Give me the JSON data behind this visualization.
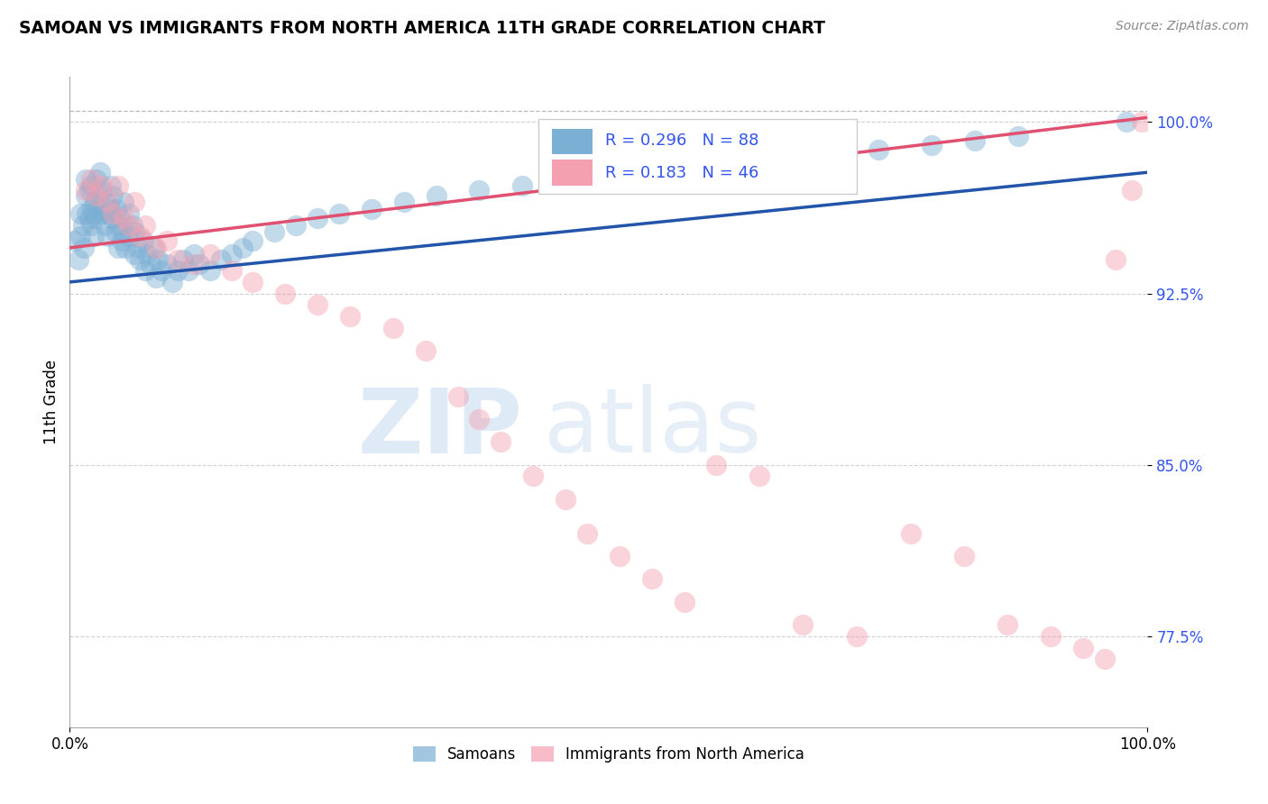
{
  "title": "SAMOAN VS IMMIGRANTS FROM NORTH AMERICA 11TH GRADE CORRELATION CHART",
  "source": "Source: ZipAtlas.com",
  "ylabel": "11th Grade",
  "xlim": [
    0.0,
    1.0
  ],
  "ylim": [
    0.735,
    1.02
  ],
  "yticks": [
    0.775,
    0.85,
    0.925,
    1.0
  ],
  "ytick_labels": [
    "77.5%",
    "85.0%",
    "92.5%",
    "100.0%"
  ],
  "xtick_labels": [
    "0.0%",
    "100.0%"
  ],
  "blue_color": "#7BAFD4",
  "pink_color": "#F4A0B0",
  "blue_line_color": "#2255AA",
  "pink_line_color": "#E05070",
  "r_blue": 0.296,
  "n_blue": 88,
  "r_pink": 0.183,
  "n_pink": 46,
  "legend_r_color": "#3355EE",
  "blue_line_y0": 0.93,
  "blue_line_y1": 0.978,
  "pink_line_y0": 0.945,
  "pink_line_y1": 1.002,
  "blue_scatter_x": [
    0.005,
    0.008,
    0.01,
    0.01,
    0.012,
    0.013,
    0.015,
    0.015,
    0.016,
    0.018,
    0.018,
    0.02,
    0.02,
    0.02,
    0.022,
    0.022,
    0.023,
    0.025,
    0.025,
    0.025,
    0.027,
    0.028,
    0.03,
    0.03,
    0.032,
    0.033,
    0.035,
    0.035,
    0.037,
    0.038,
    0.04,
    0.04,
    0.042,
    0.043,
    0.045,
    0.045,
    0.047,
    0.048,
    0.05,
    0.05,
    0.052,
    0.055,
    0.055,
    0.058,
    0.06,
    0.06,
    0.063,
    0.065,
    0.068,
    0.07,
    0.072,
    0.075,
    0.078,
    0.08,
    0.082,
    0.085,
    0.09,
    0.095,
    0.1,
    0.105,
    0.11,
    0.115,
    0.12,
    0.13,
    0.14,
    0.15,
    0.16,
    0.17,
    0.19,
    0.21,
    0.23,
    0.25,
    0.28,
    0.31,
    0.34,
    0.38,
    0.42,
    0.47,
    0.53,
    0.58,
    0.62,
    0.66,
    0.7,
    0.75,
    0.8,
    0.84,
    0.88,
    0.98
  ],
  "blue_scatter_y": [
    0.948,
    0.94,
    0.95,
    0.96,
    0.955,
    0.945,
    0.968,
    0.975,
    0.96,
    0.97,
    0.958,
    0.962,
    0.955,
    0.972,
    0.96,
    0.95,
    0.965,
    0.958,
    0.968,
    0.975,
    0.962,
    0.978,
    0.96,
    0.97,
    0.955,
    0.965,
    0.96,
    0.95,
    0.962,
    0.972,
    0.958,
    0.968,
    0.952,
    0.962,
    0.955,
    0.945,
    0.958,
    0.948,
    0.952,
    0.965,
    0.945,
    0.96,
    0.95,
    0.955,
    0.942,
    0.952,
    0.945,
    0.94,
    0.948,
    0.935,
    0.942,
    0.938,
    0.945,
    0.932,
    0.94,
    0.935,
    0.938,
    0.93,
    0.935,
    0.94,
    0.935,
    0.942,
    0.938,
    0.935,
    0.94,
    0.942,
    0.945,
    0.948,
    0.952,
    0.955,
    0.958,
    0.96,
    0.962,
    0.965,
    0.968,
    0.97,
    0.972,
    0.975,
    0.978,
    0.98,
    0.982,
    0.984,
    0.986,
    0.988,
    0.99,
    0.992,
    0.994,
    1.0
  ],
  "pink_scatter_x": [
    0.015,
    0.02,
    0.025,
    0.03,
    0.035,
    0.04,
    0.045,
    0.05,
    0.055,
    0.06,
    0.065,
    0.07,
    0.08,
    0.09,
    0.1,
    0.115,
    0.13,
    0.15,
    0.17,
    0.2,
    0.23,
    0.26,
    0.3,
    0.33,
    0.36,
    0.38,
    0.4,
    0.43,
    0.46,
    0.48,
    0.51,
    0.54,
    0.57,
    0.6,
    0.64,
    0.68,
    0.73,
    0.78,
    0.83,
    0.87,
    0.91,
    0.94,
    0.96,
    0.97,
    0.985,
    0.995
  ],
  "pink_scatter_y": [
    0.97,
    0.975,
    0.968,
    0.972,
    0.965,
    0.96,
    0.972,
    0.958,
    0.955,
    0.965,
    0.95,
    0.955,
    0.945,
    0.948,
    0.94,
    0.938,
    0.942,
    0.935,
    0.93,
    0.925,
    0.92,
    0.915,
    0.91,
    0.9,
    0.88,
    0.87,
    0.86,
    0.845,
    0.835,
    0.82,
    0.81,
    0.8,
    0.79,
    0.85,
    0.845,
    0.78,
    0.775,
    0.82,
    0.81,
    0.78,
    0.775,
    0.77,
    0.765,
    0.94,
    0.97,
    1.0
  ]
}
